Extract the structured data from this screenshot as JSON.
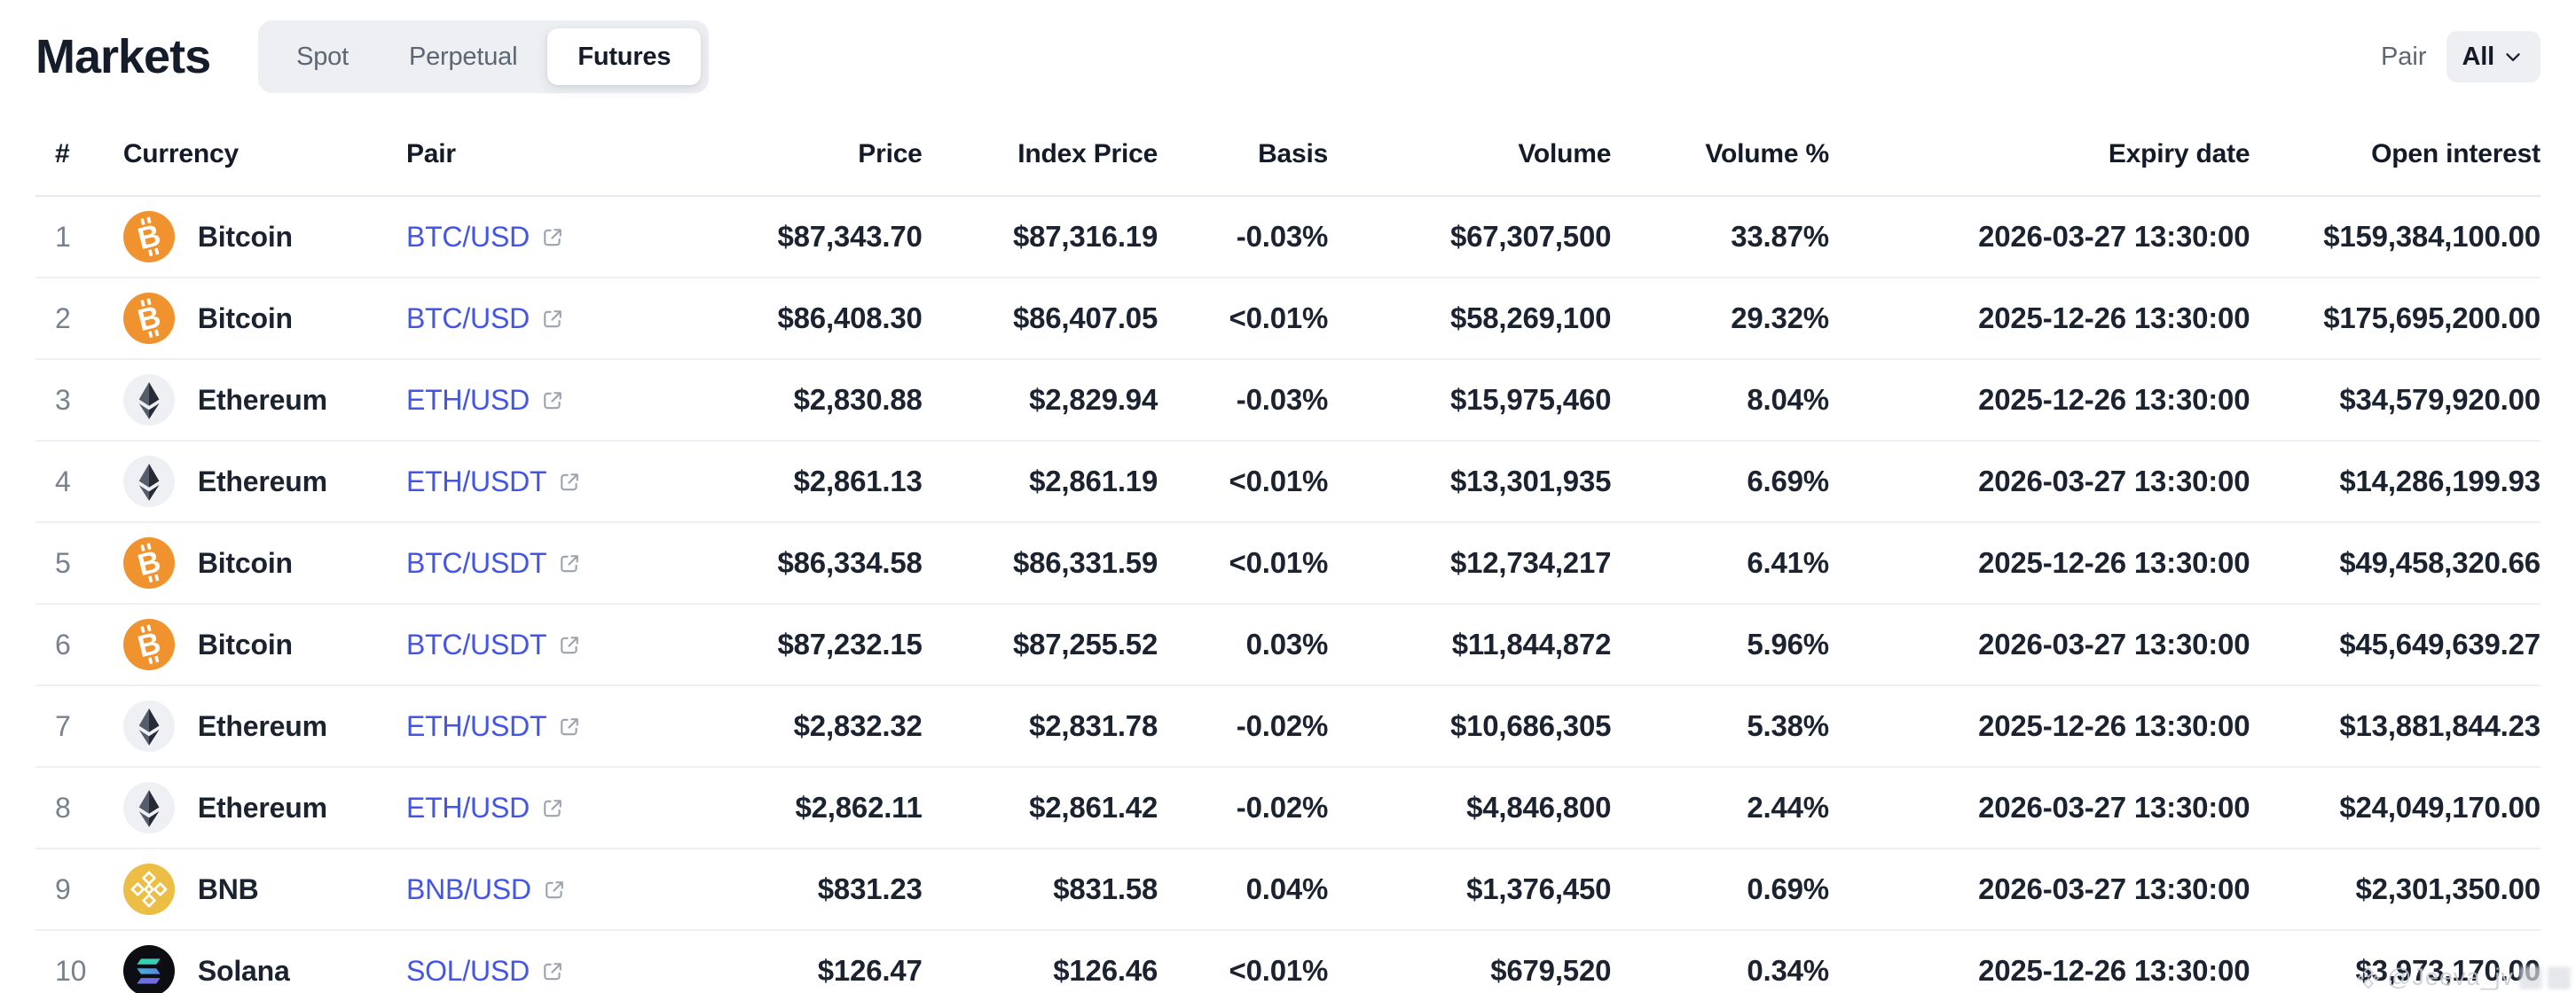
{
  "header": {
    "title": "Markets",
    "tabs": [
      {
        "label": "Spot",
        "active": false
      },
      {
        "label": "Perpetual",
        "active": false
      },
      {
        "label": "Futures",
        "active": true
      }
    ],
    "pair_filter": {
      "label": "Pair",
      "value": "All",
      "icon": "chevron-down-icon"
    }
  },
  "table": {
    "columns": [
      {
        "label": "#",
        "align": "left"
      },
      {
        "label": "Currency",
        "align": "left"
      },
      {
        "label": "Pair",
        "align": "left"
      },
      {
        "label": "Price",
        "align": "right"
      },
      {
        "label": "Index Price",
        "align": "right"
      },
      {
        "label": "Basis",
        "align": "right"
      },
      {
        "label": "Volume",
        "align": "right"
      },
      {
        "label": "Volume %",
        "align": "right"
      },
      {
        "label": "Expiry date",
        "align": "right"
      },
      {
        "label": "Open interest",
        "align": "right"
      }
    ],
    "rows": [
      {
        "rank": "1",
        "currency": "Bitcoin",
        "icon": "bitcoin",
        "pair": "BTC/USD",
        "price": "$87,343.70",
        "index_price": "$87,316.19",
        "basis": "-0.03%",
        "volume": "$67,307,500",
        "volume_pct": "33.87%",
        "expiry": "2026-03-27 13:30:00",
        "open_interest": "$159,384,100.00"
      },
      {
        "rank": "2",
        "currency": "Bitcoin",
        "icon": "bitcoin",
        "pair": "BTC/USD",
        "price": "$86,408.30",
        "index_price": "$86,407.05",
        "basis": "<0.01%",
        "volume": "$58,269,100",
        "volume_pct": "29.32%",
        "expiry": "2025-12-26 13:30:00",
        "open_interest": "$175,695,200.00"
      },
      {
        "rank": "3",
        "currency": "Ethereum",
        "icon": "ethereum",
        "pair": "ETH/USD",
        "price": "$2,830.88",
        "index_price": "$2,829.94",
        "basis": "-0.03%",
        "volume": "$15,975,460",
        "volume_pct": "8.04%",
        "expiry": "2025-12-26 13:30:00",
        "open_interest": "$34,579,920.00"
      },
      {
        "rank": "4",
        "currency": "Ethereum",
        "icon": "ethereum",
        "pair": "ETH/USDT",
        "price": "$2,861.13",
        "index_price": "$2,861.19",
        "basis": "<0.01%",
        "volume": "$13,301,935",
        "volume_pct": "6.69%",
        "expiry": "2026-03-27 13:30:00",
        "open_interest": "$14,286,199.93"
      },
      {
        "rank": "5",
        "currency": "Bitcoin",
        "icon": "bitcoin",
        "pair": "BTC/USDT",
        "price": "$86,334.58",
        "index_price": "$86,331.59",
        "basis": "<0.01%",
        "volume": "$12,734,217",
        "volume_pct": "6.41%",
        "expiry": "2025-12-26 13:30:00",
        "open_interest": "$49,458,320.66"
      },
      {
        "rank": "6",
        "currency": "Bitcoin",
        "icon": "bitcoin",
        "pair": "BTC/USDT",
        "price": "$87,232.15",
        "index_price": "$87,255.52",
        "basis": "0.03%",
        "volume": "$11,844,872",
        "volume_pct": "5.96%",
        "expiry": "2026-03-27 13:30:00",
        "open_interest": "$45,649,639.27"
      },
      {
        "rank": "7",
        "currency": "Ethereum",
        "icon": "ethereum",
        "pair": "ETH/USDT",
        "price": "$2,832.32",
        "index_price": "$2,831.78",
        "basis": "-0.02%",
        "volume": "$10,686,305",
        "volume_pct": "5.38%",
        "expiry": "2025-12-26 13:30:00",
        "open_interest": "$13,881,844.23"
      },
      {
        "rank": "8",
        "currency": "Ethereum",
        "icon": "ethereum",
        "pair": "ETH/USD",
        "price": "$2,862.11",
        "index_price": "$2,861.42",
        "basis": "-0.02%",
        "volume": "$4,846,800",
        "volume_pct": "2.44%",
        "expiry": "2026-03-27 13:30:00",
        "open_interest": "$24,049,170.00"
      },
      {
        "rank": "9",
        "currency": "BNB",
        "icon": "bnb",
        "pair": "BNB/USD",
        "price": "$831.23",
        "index_price": "$831.58",
        "basis": "0.04%",
        "volume": "$1,376,450",
        "volume_pct": "0.69%",
        "expiry": "2026-03-27 13:30:00",
        "open_interest": "$2,301,350.00"
      },
      {
        "rank": "10",
        "currency": "Solana",
        "icon": "solana",
        "pair": "SOL/USD",
        "price": "$126.47",
        "index_price": "$126.46",
        "basis": "<0.01%",
        "volume": "$679,520",
        "volume_pct": "0.34%",
        "expiry": "2025-12-26 13:30:00",
        "open_interest": "$3,973,170.00"
      }
    ]
  },
  "colors": {
    "text_dark": "#1c2330",
    "text_gray": "#5d6672",
    "link_blue": "#4355e8",
    "bitcoin_orange": "#f0932f",
    "bnb_gold": "#edbe46",
    "eth_circle": "#eef0f3",
    "eth_dark": "#262b36",
    "eth_mid": "#555c6c",
    "solana_black": "#0c0e13",
    "solana_green": "#2fd9a4",
    "solana_violet": "#7a64e8",
    "tab_bg": "#edeff3",
    "row_border": "#edf0f4"
  },
  "watermark": {
    "text": "@Jeeva_jv",
    "icon": "diamond-logo-icon"
  }
}
